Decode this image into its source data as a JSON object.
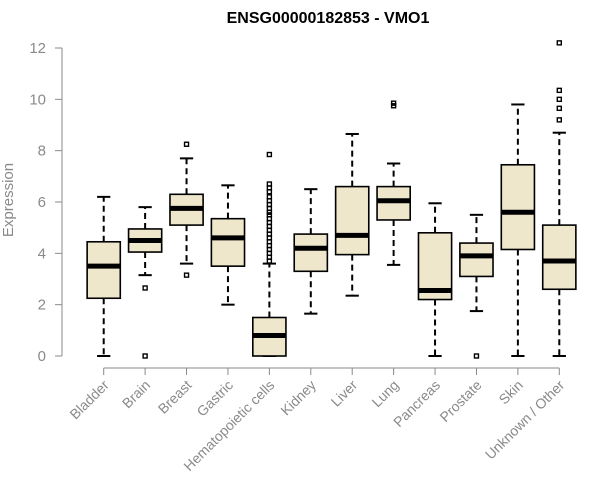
{
  "chart_data": {
    "type": "box",
    "title": "ENSG00000182853 - VMO1",
    "ylabel": "Expression",
    "xlabel": "",
    "ylim": [
      0,
      12.5
    ],
    "yticks": [
      0,
      2,
      4,
      6,
      8,
      10,
      12
    ],
    "grid": false,
    "colors": {
      "box_fill": "#efe7cc",
      "box_stroke": "#000000",
      "axis": "#8a8a8a"
    },
    "categories": [
      "Bladder",
      "Brain",
      "Breast",
      "Gastric",
      "Hematopoietic cells",
      "Kidney",
      "Liver",
      "Lung",
      "Pancreas",
      "Prostate",
      "Skin",
      "Unknown / Other"
    ],
    "boxes": [
      {
        "category": "Bladder",
        "min": 0.0,
        "q1": 2.25,
        "median": 3.5,
        "q3": 4.45,
        "max": 6.2,
        "outliers": []
      },
      {
        "category": "Brain",
        "min": 3.15,
        "q1": 4.05,
        "median": 4.5,
        "q3": 4.95,
        "max": 5.8,
        "outliers": [
          2.65,
          0.0
        ]
      },
      {
        "category": "Breast",
        "min": 3.6,
        "q1": 5.1,
        "median": 5.75,
        "q3": 6.3,
        "max": 7.7,
        "outliers": [
          8.25,
          3.15
        ]
      },
      {
        "category": "Gastric",
        "min": 2.0,
        "q1": 3.5,
        "median": 4.6,
        "q3": 5.35,
        "max": 6.65,
        "outliers": []
      },
      {
        "category": "Hematopoietic cells",
        "min": 0.0,
        "q1": 0.0,
        "median": 0.8,
        "q3": 1.5,
        "max": 3.6,
        "outliers": [
          7.85,
          6.7,
          6.55,
          6.4,
          6.2,
          6.05,
          5.9,
          5.75,
          5.6,
          5.5,
          5.35,
          5.2,
          5.05,
          4.9,
          4.75,
          4.6,
          4.45,
          4.3,
          4.15,
          4.0,
          3.85,
          3.7
        ]
      },
      {
        "category": "Kidney",
        "min": 1.65,
        "q1": 3.3,
        "median": 4.2,
        "q3": 4.75,
        "max": 6.5,
        "outliers": []
      },
      {
        "category": "Liver",
        "min": 2.35,
        "q1": 3.95,
        "median": 4.7,
        "q3": 6.6,
        "max": 8.65,
        "outliers": []
      },
      {
        "category": "Lung",
        "min": 3.55,
        "q1": 5.3,
        "median": 6.05,
        "q3": 6.6,
        "max": 7.5,
        "outliers": [
          9.75,
          9.85
        ]
      },
      {
        "category": "Pancreas",
        "min": 0.0,
        "q1": 2.2,
        "median": 2.55,
        "q3": 4.8,
        "max": 5.95,
        "outliers": []
      },
      {
        "category": "Prostate",
        "min": 1.75,
        "q1": 3.1,
        "median": 3.9,
        "q3": 4.4,
        "max": 5.5,
        "outliers": [
          0.0
        ]
      },
      {
        "category": "Skin",
        "min": 0.0,
        "q1": 4.15,
        "median": 5.6,
        "q3": 7.45,
        "max": 9.8,
        "outliers": []
      },
      {
        "category": "Unknown / Other",
        "min": 0.0,
        "q1": 2.6,
        "median": 3.7,
        "q3": 5.1,
        "max": 8.7,
        "outliers": [
          12.2,
          10.35,
          10.0,
          9.65,
          9.2
        ]
      }
    ]
  }
}
